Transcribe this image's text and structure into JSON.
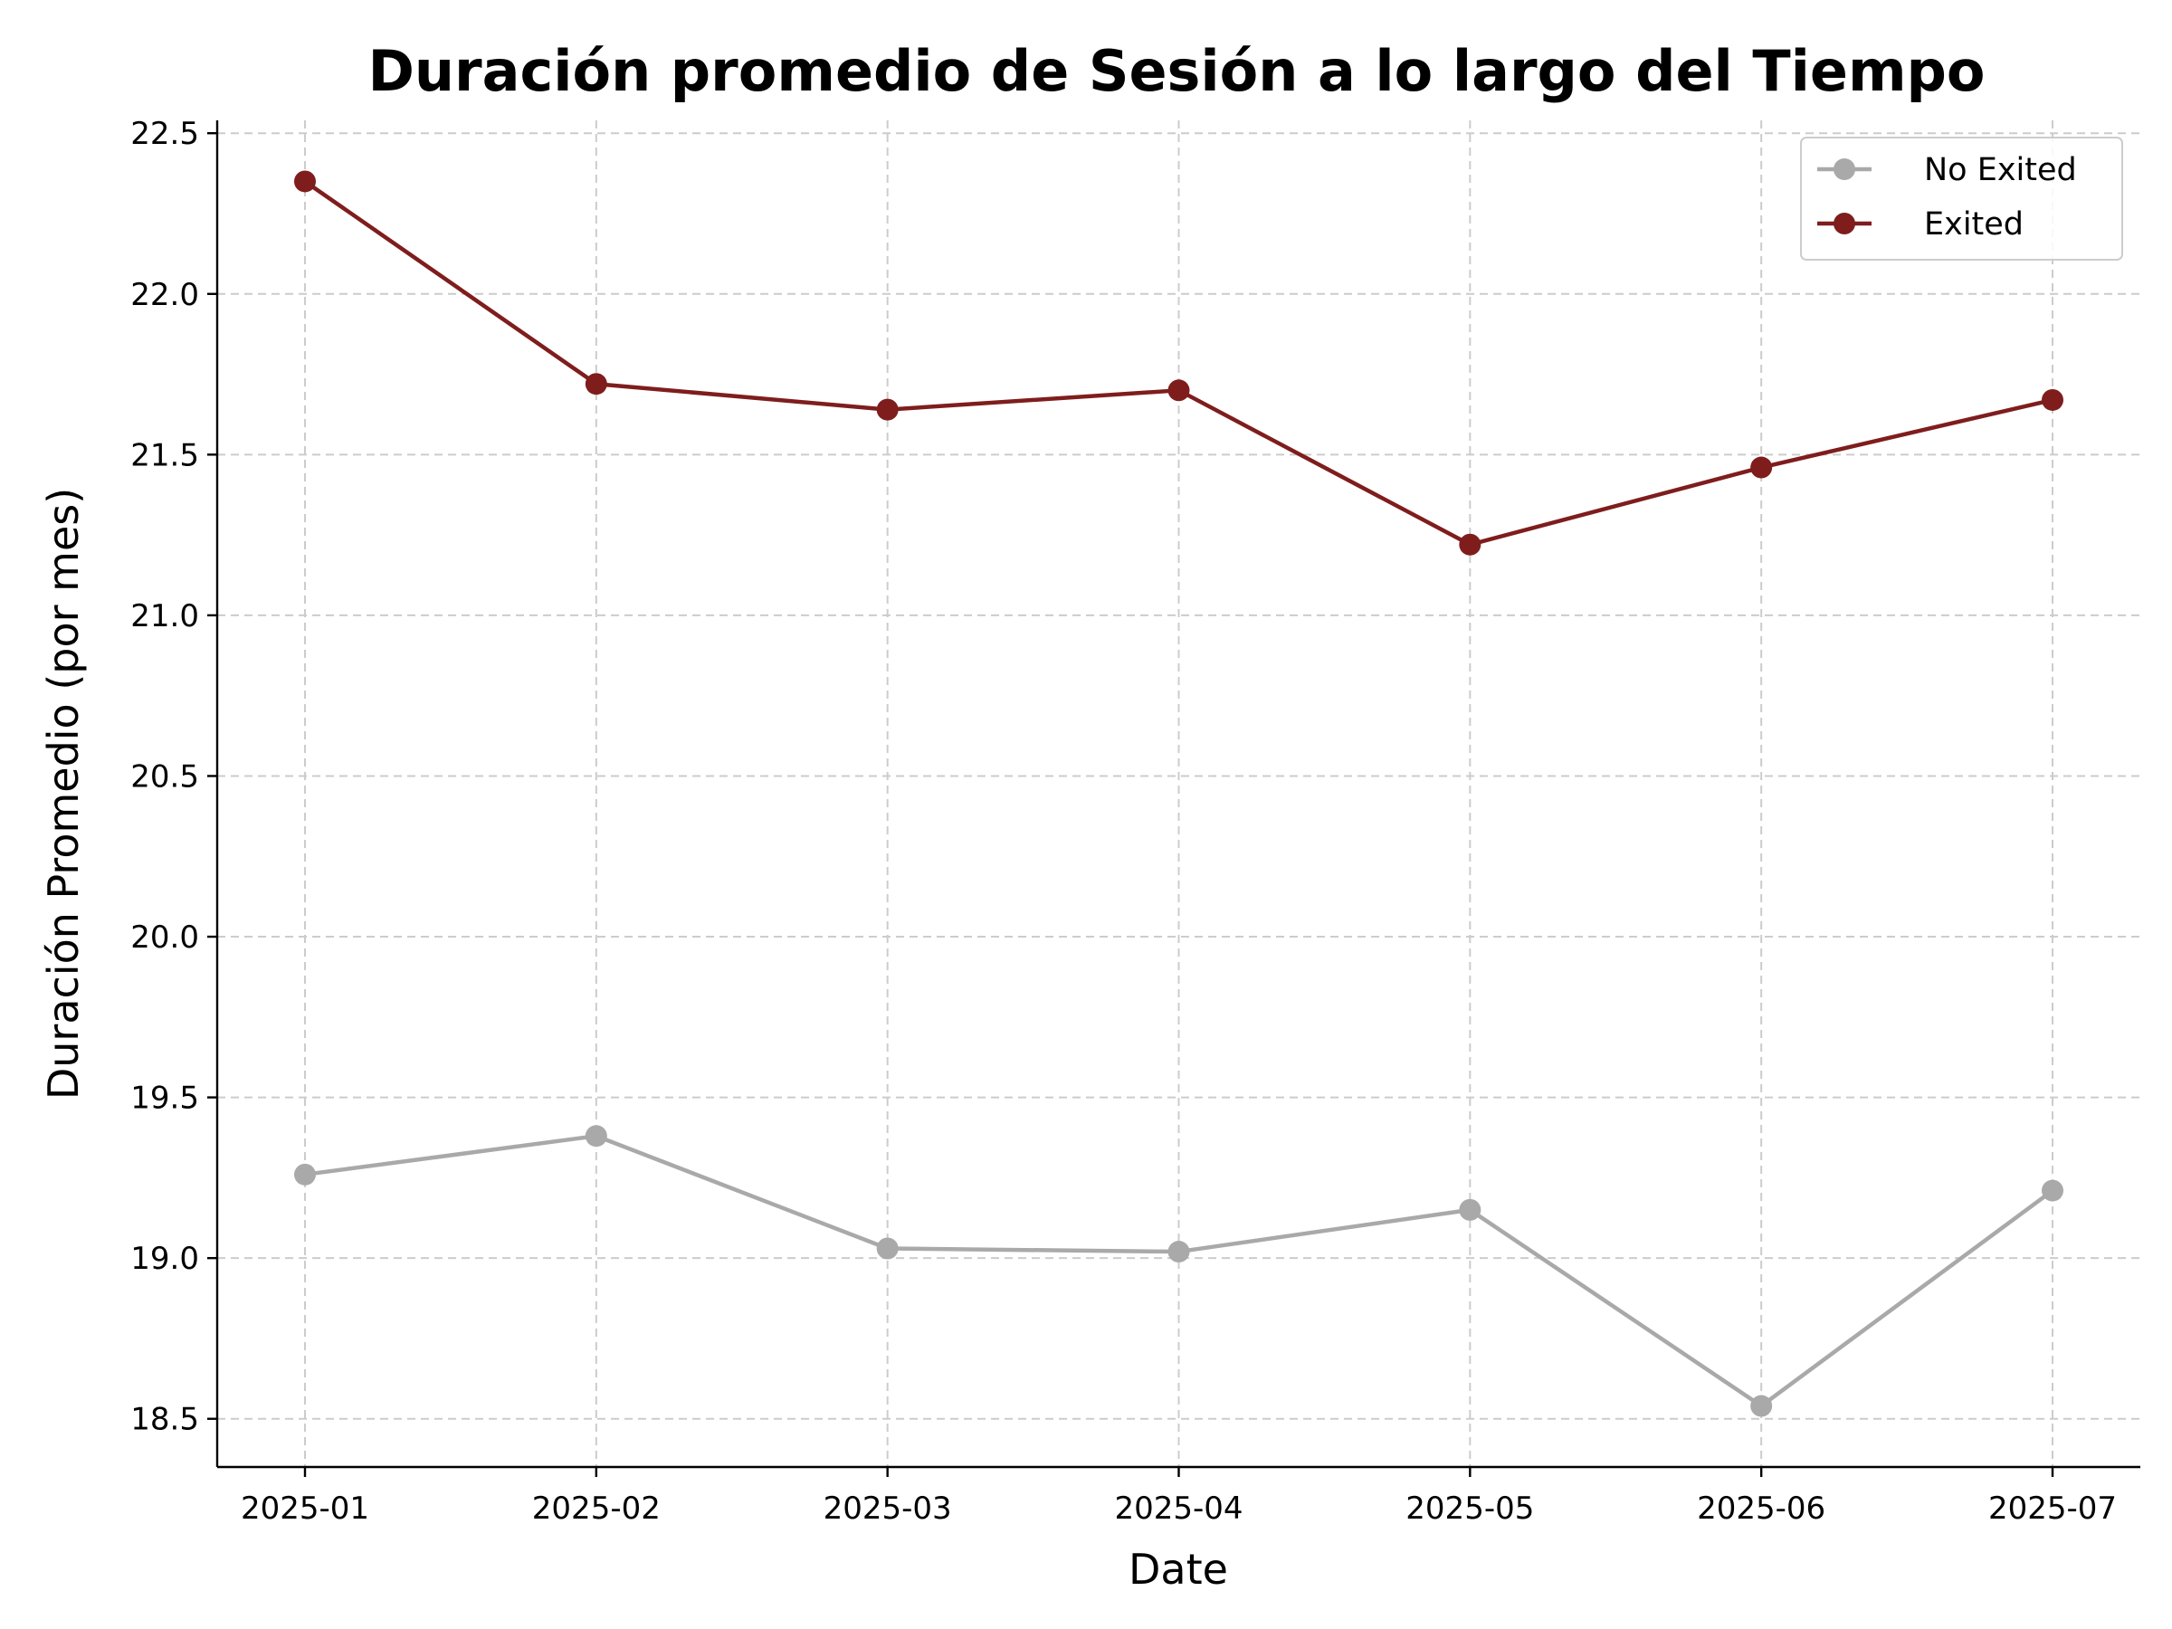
{
  "chart_data": {
    "type": "line",
    "title": "Duración promedio de Sesión a lo largo del Tiempo",
    "xlabel": "Date",
    "ylabel": "Duración Promedio (por mes)",
    "categories": [
      "2025-01",
      "2025-02",
      "2025-03",
      "2025-04",
      "2025-05",
      "2025-06",
      "2025-07"
    ],
    "ylim": [
      18.35,
      22.54
    ],
    "yticks": [
      18.5,
      19.0,
      19.5,
      20.0,
      20.5,
      21.0,
      21.5,
      22.0,
      22.5
    ],
    "grid": true,
    "legend_position": "top-right",
    "series": [
      {
        "name": "No Exited",
        "color": "#a9a9a9",
        "values": [
          19.26,
          19.38,
          19.03,
          19.02,
          19.15,
          18.54,
          19.21
        ]
      },
      {
        "name": "Exited",
        "color": "#7f1d1d",
        "values": [
          22.35,
          21.72,
          21.64,
          21.7,
          21.22,
          21.46,
          21.67
        ]
      }
    ]
  }
}
